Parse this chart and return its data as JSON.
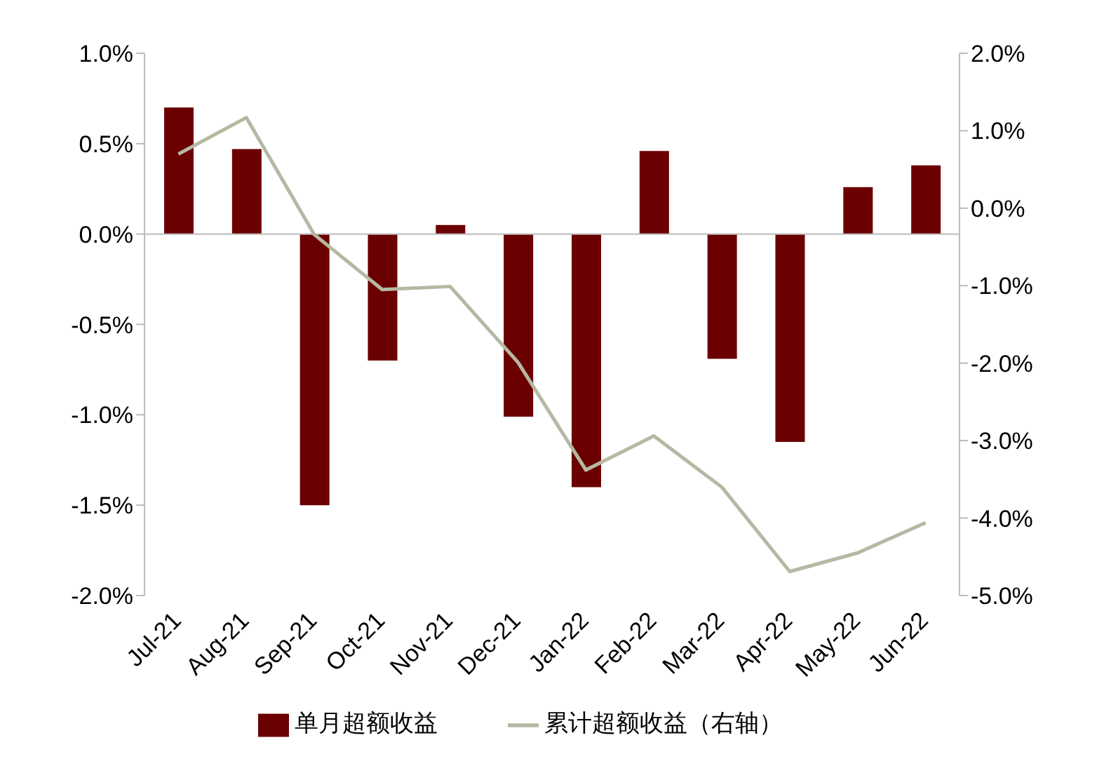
{
  "chart_data": {
    "type": "bar",
    "categories": [
      "Jul-21",
      "Aug-21",
      "Sep-21",
      "Oct-21",
      "Nov-21",
      "Dec-21",
      "Jan-22",
      "Feb-22",
      "Mar-22",
      "Apr-22",
      "May-22",
      "Jun-22"
    ],
    "series": [
      {
        "name": "单月超额收益",
        "color": "#6b0000",
        "values": [
          0.7,
          0.47,
          -1.5,
          -0.7,
          0.05,
          -1.01,
          -1.4,
          0.46,
          -0.69,
          -1.15,
          0.26,
          0.38
        ]
      },
      {
        "name": "累计超额收益（右轴）",
        "type": "line",
        "axis": "y2",
        "color": "#b5b9a3",
        "values": [
          0.7,
          1.17,
          -0.34,
          -1.05,
          -1.01,
          -1.99,
          -3.38,
          -2.94,
          -3.6,
          -4.69,
          -4.45,
          -4.06
        ]
      }
    ],
    "ylim": [
      -2.0,
      1.0
    ],
    "yticks": [
      {
        "value": -2.0,
        "label": "-2.0%"
      },
      {
        "value": -1.5,
        "label": "-1.5%"
      },
      {
        "value": -1.0,
        "label": "-1.0%"
      },
      {
        "value": -0.5,
        "label": "-0.5%"
      },
      {
        "value": 0,
        "label": "0.0%"
      },
      {
        "value": 0.5,
        "label": "0.5%"
      },
      {
        "value": 1.0,
        "label": "1.0%"
      }
    ],
    "y2lim": [
      -5.0,
      2.0
    ],
    "y2ticks": [
      {
        "value": -5.0,
        "label": "-5.0%"
      },
      {
        "value": -4.0,
        "label": "-4.0%"
      },
      {
        "value": -3.0,
        "label": "-3.0%"
      },
      {
        "value": -2.0,
        "label": "-2.0%"
      },
      {
        "value": -1.0,
        "label": "-1.0%"
      },
      {
        "value": 0,
        "label": "0.0%"
      },
      {
        "value": 1.0,
        "label": "1.0%"
      },
      {
        "value": 2.0,
        "label": "2.0%"
      }
    ],
    "legend": "bottom",
    "marker": "none"
  }
}
